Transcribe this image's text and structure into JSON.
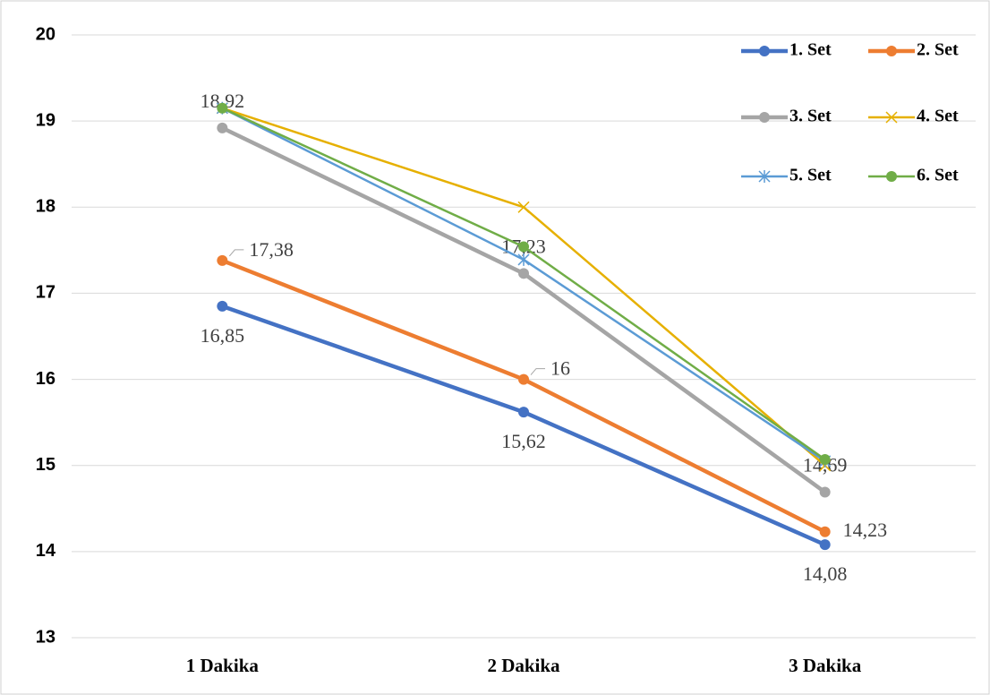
{
  "chart_data": {
    "type": "line",
    "categories": [
      "1 Dakika",
      "2 Dakika",
      "3 Dakika"
    ],
    "series": [
      {
        "name": "1. Set",
        "color": "#4472c4",
        "marker": "circle",
        "values": [
          16.85,
          15.62,
          14.08
        ],
        "value_labels": [
          "16,85",
          "15,62",
          "14,08"
        ]
      },
      {
        "name": "2. Set",
        "color": "#ed7d31",
        "marker": "circle",
        "values": [
          17.38,
          16,
          14.23
        ],
        "value_labels": [
          "17,38",
          "16",
          "14,23"
        ]
      },
      {
        "name": "3. Set",
        "color": "#a5a5a5",
        "marker": "circle",
        "values": [
          18.92,
          17.23,
          14.69
        ],
        "value_labels": [
          "18,92",
          "17,23",
          "14,69"
        ]
      },
      {
        "name": "4. Set",
        "color": "#e6b000",
        "marker": "x",
        "values": [
          19.15,
          18.0,
          15.0
        ]
      },
      {
        "name": "5. Set",
        "color": "#5b9bd5",
        "marker": "star",
        "values": [
          19.15,
          17.39,
          15.05
        ]
      },
      {
        "name": "6. Set",
        "color": "#70ad47",
        "marker": "circle",
        "values": [
          19.15,
          17.54,
          15.07
        ]
      }
    ],
    "ylim": [
      13,
      20
    ],
    "yticks": [
      13,
      14,
      15,
      16,
      17,
      18,
      19,
      20
    ],
    "grid": true,
    "legend": "top-right"
  }
}
